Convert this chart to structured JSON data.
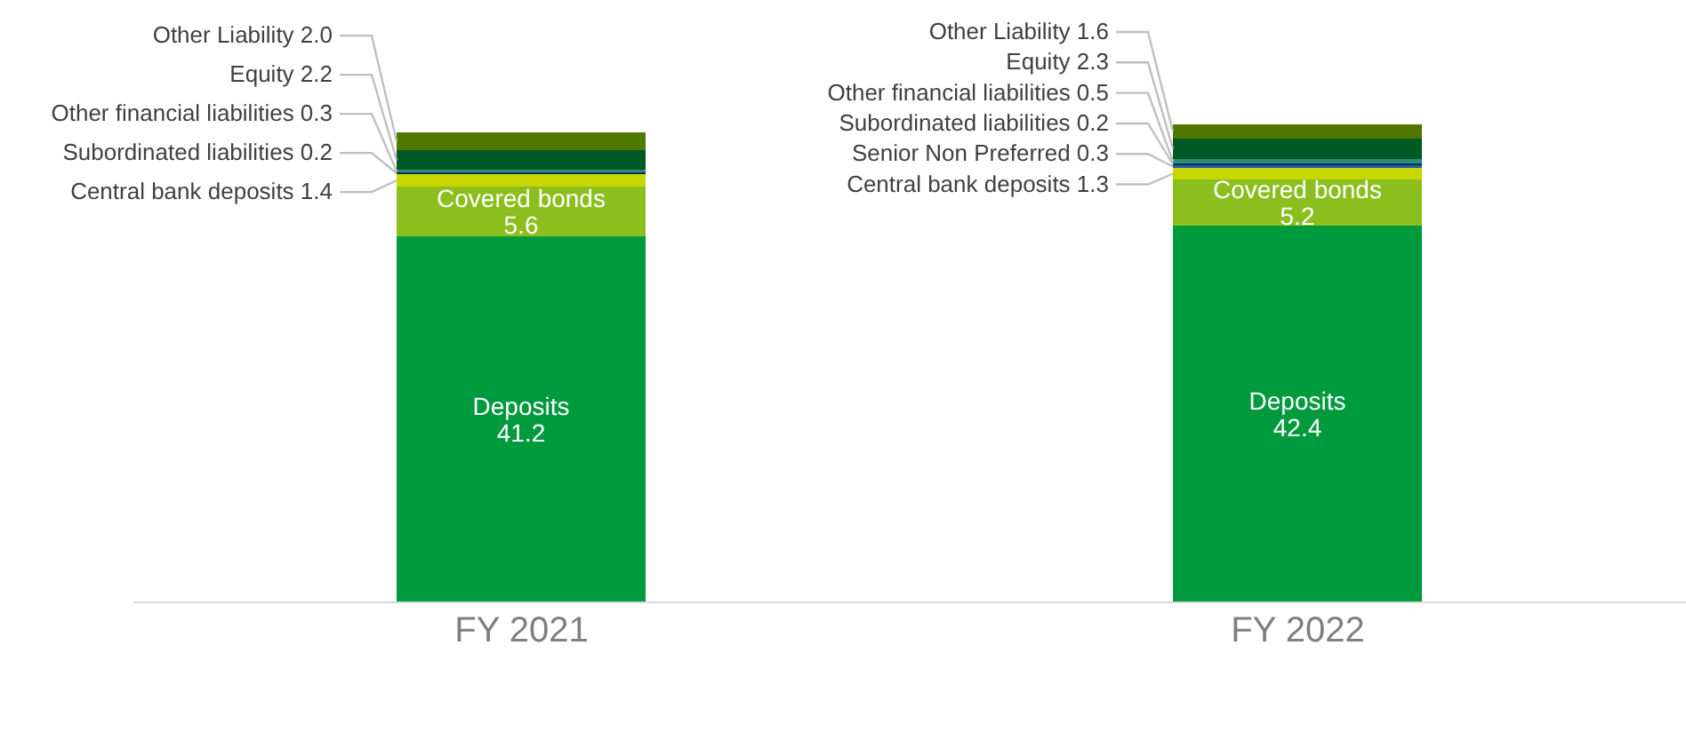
{
  "chart_data": {
    "type": "bar",
    "stacked": true,
    "categories": [
      "FY 2021",
      "FY 2022"
    ],
    "series": [
      {
        "name": "Deposits",
        "color": "#009a3e",
        "values": [
          41.2,
          42.4
        ],
        "value_labels": [
          "41.2",
          "42.4"
        ]
      },
      {
        "name": "Covered bonds",
        "color": "#8cbf1e",
        "values": [
          5.6,
          5.2
        ],
        "value_labels": [
          "5.6",
          "5.2"
        ]
      },
      {
        "name": "Central bank deposits",
        "color": "#c8d600",
        "values": [
          1.4,
          1.3
        ],
        "value_labels": [
          "1.4",
          "1.3"
        ]
      },
      {
        "name": "Senior Non Preferred",
        "color": "#1f5fa8",
        "values": [
          null,
          0.3
        ],
        "value_labels": [
          null,
          "0.3"
        ]
      },
      {
        "name": "Subordinated liabilities",
        "color": "#0d2b5e",
        "values": [
          0.2,
          0.2
        ],
        "value_labels": [
          "0.2",
          "0.2"
        ]
      },
      {
        "name": "Other financial liabilities",
        "color": "#2a8f7a",
        "values": [
          0.3,
          0.5
        ],
        "value_labels": [
          "0.3",
          "0.5"
        ]
      },
      {
        "name": "Equity",
        "color": "#005a25",
        "values": [
          2.2,
          2.3
        ],
        "value_labels": [
          "2.2",
          "2.3"
        ]
      },
      {
        "name": "Other Liability",
        "color": "#507800",
        "values": [
          2.0,
          1.6
        ],
        "value_labels": [
          "2.0",
          "1.6"
        ]
      }
    ],
    "grid": false,
    "legend": false
  }
}
